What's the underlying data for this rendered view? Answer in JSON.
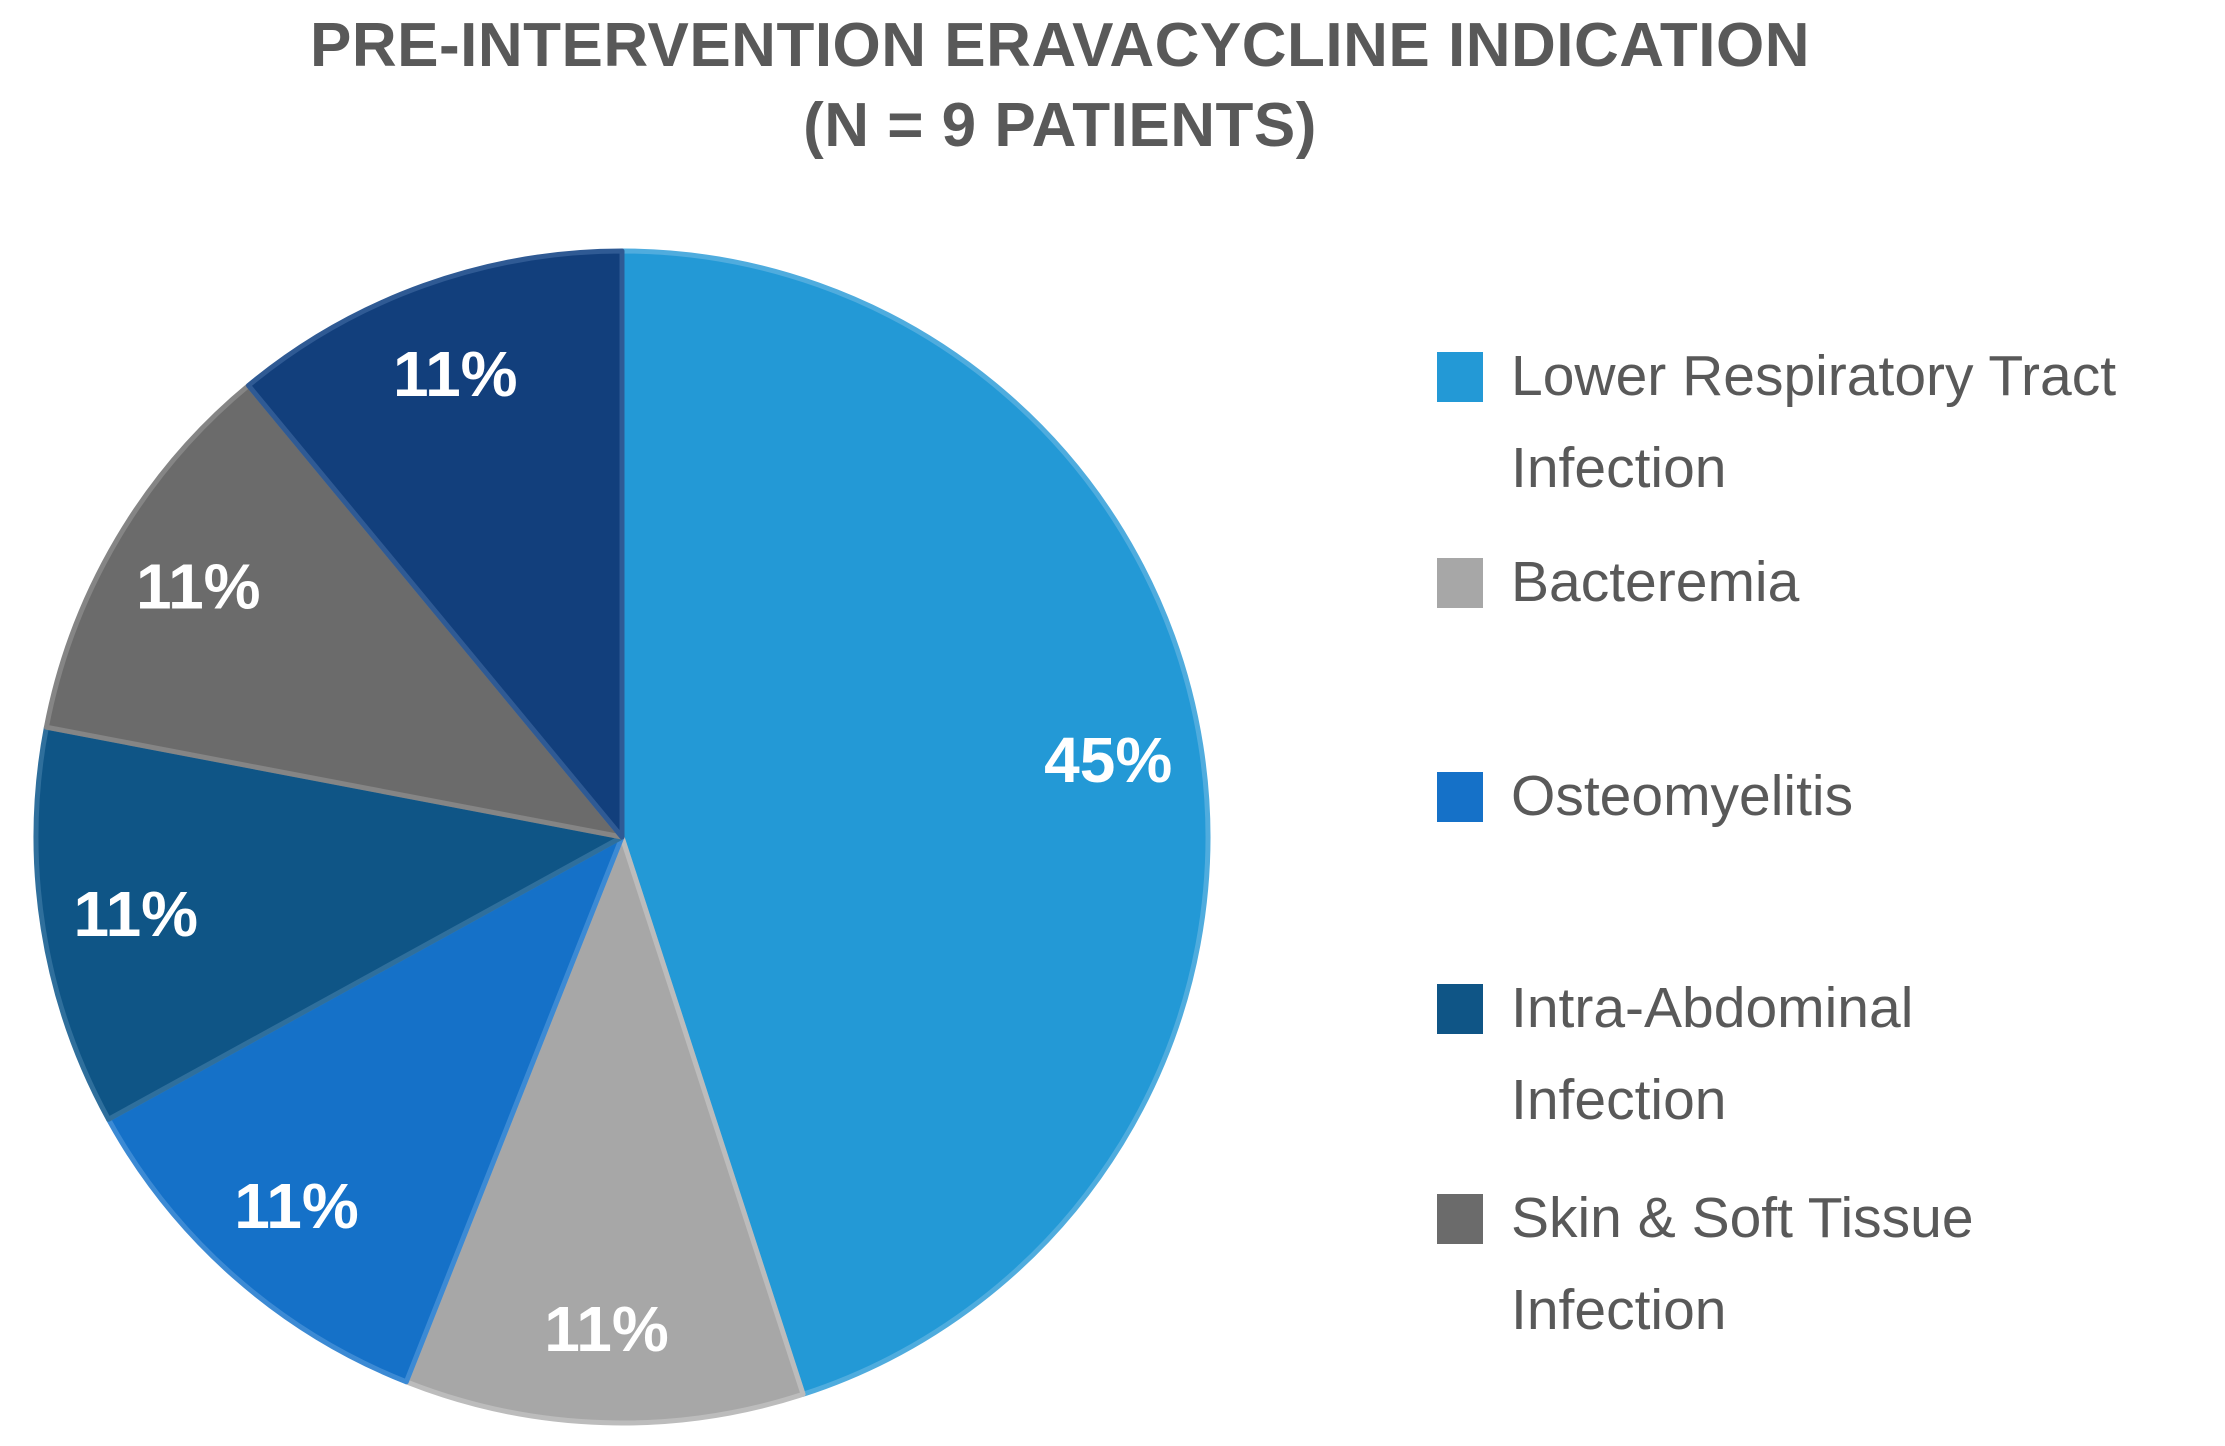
{
  "title": {
    "line1": "PRE-INTERVENTION ERAVACYCLINE INDICATION",
    "line2": "(N = 9 PATIENTS)",
    "full": "PRE-INTERVENTION ERAVACYCLINE INDICATION (N = 9 PATIENTS)"
  },
  "colors": {
    "background": "#FFFFFF",
    "title_text": "#595959",
    "legend_text": "#595959",
    "slice_label_text": "#FFFFFF"
  },
  "chart_data": {
    "type": "pie",
    "title": "PRE-INTERVENTION ERAVACYCLINE INDICATION (N = 9 PATIENTS)",
    "n_patients": 9,
    "start_angle_deg": 0,
    "direction": "clockwise",
    "legend_position": "right",
    "slices": [
      {
        "label": "Lower Respiratory Tract Infection",
        "pct": 45,
        "data_label": "45%",
        "color": "#2399D6",
        "border_color": "#4FACDE"
      },
      {
        "label": "Bacteremia",
        "pct": 11,
        "data_label": "11%",
        "color": "#A7A7A7",
        "border_color": "#BCBCBC"
      },
      {
        "label": "Osteomyelitis",
        "pct": 11,
        "data_label": "11%",
        "color": "#1571C8",
        "border_color": "#3C8AD4"
      },
      {
        "label": "Intra-Abdominal Infection",
        "pct": 11,
        "data_label": "11%",
        "color": "#0F5586",
        "border_color": "#2F6F9C"
      },
      {
        "label": "Skin & Soft Tissue Infection",
        "pct": 11,
        "data_label": "11%",
        "color": "#6B6B6B",
        "border_color": "#858585"
      },
      {
        "label": "",
        "pct": 11,
        "data_label": "11%",
        "color": "#123F7C",
        "border_color": "#2F5A94",
        "note": "slice visible in pie; no legend entry visible in screenshot"
      }
    ]
  },
  "legend": {
    "items": [
      {
        "lines": [
          "Lower Respiratory Tract",
          "Infection"
        ],
        "color": "#2399D6"
      },
      {
        "lines": [
          "Bacteremia"
        ],
        "color": "#A7A7A7"
      },
      {
        "lines": [
          "Osteomyelitis"
        ],
        "color": "#1571C8"
      },
      {
        "lines": [
          "Intra-Abdominal",
          "Infection"
        ],
        "color": "#0F5586"
      },
      {
        "lines": [
          "Skin & Soft Tissue",
          "Infection"
        ],
        "color": "#6B6B6B"
      }
    ]
  }
}
